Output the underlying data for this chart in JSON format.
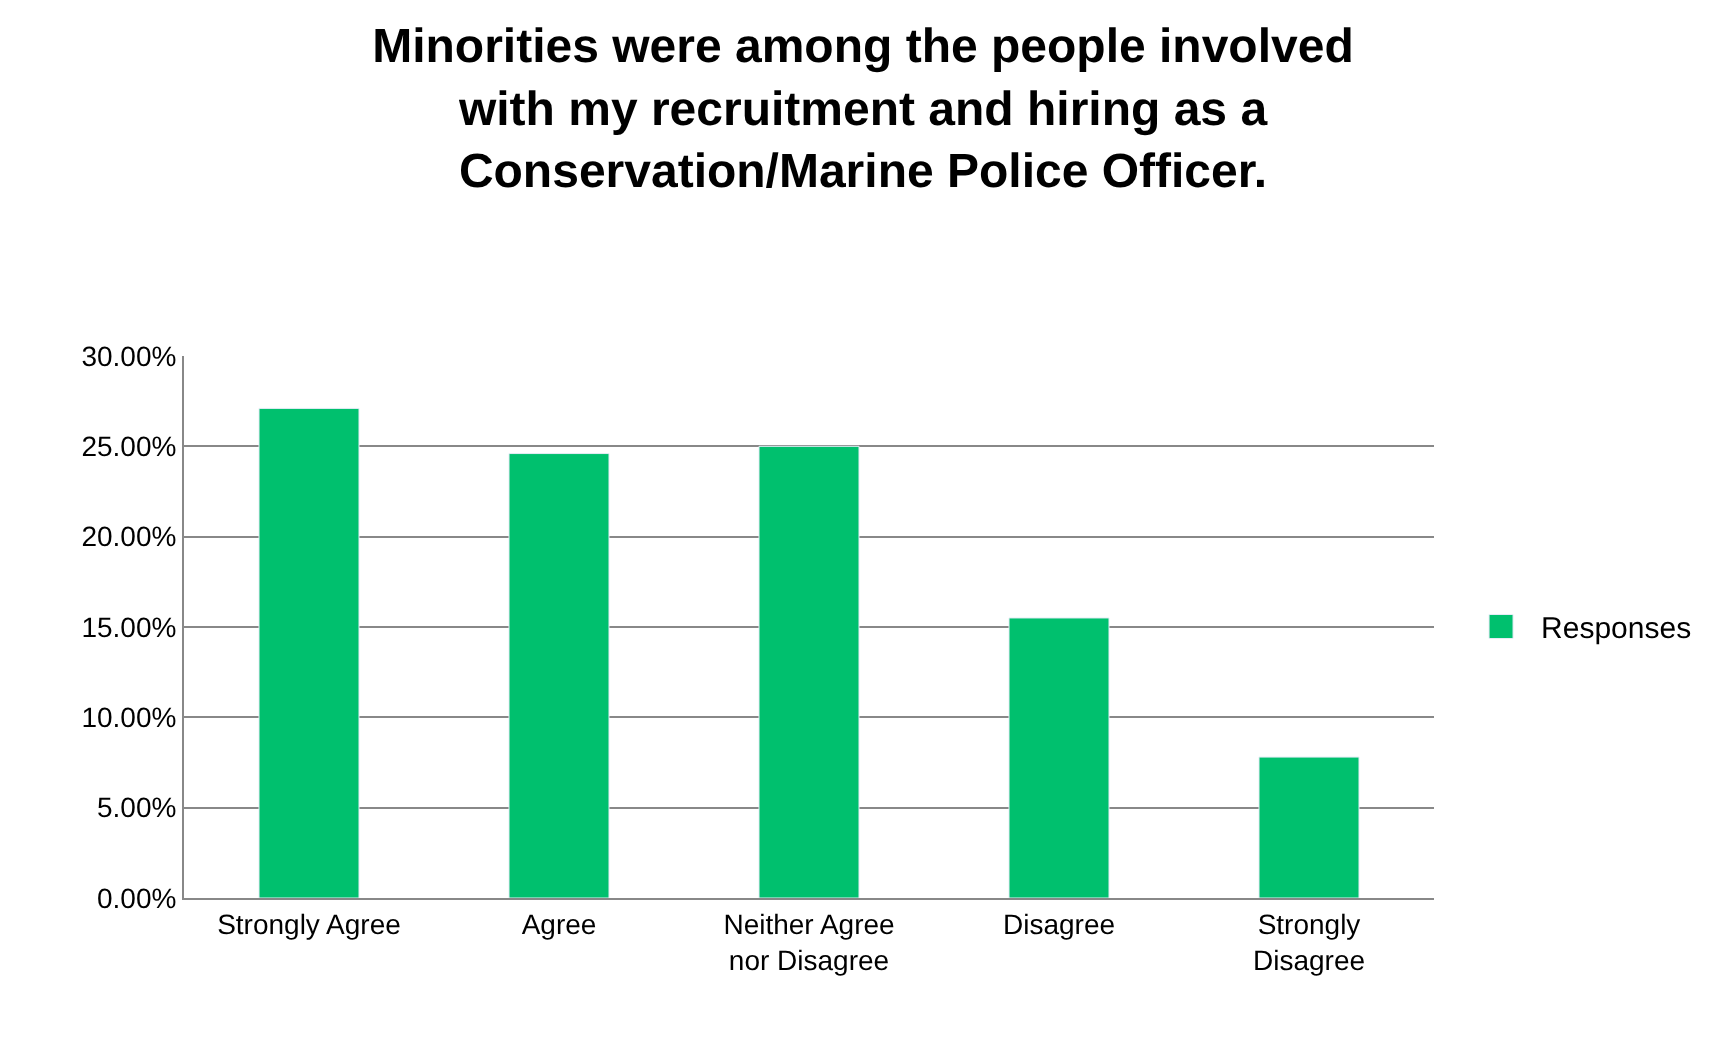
{
  "chart_data": {
    "type": "bar",
    "title": "Minorities were among the people involved with my recruitment and hiring as a Conservation/Marine Police Officer.",
    "categories": [
      "Strongly Agree",
      "Agree",
      "Neither Agree nor Disagree",
      "Disagree",
      "Strongly Disagree"
    ],
    "series": [
      {
        "name": "Responses",
        "color": "#00c06e",
        "values": [
          27.1,
          24.6,
          25.0,
          15.5,
          7.8
        ]
      }
    ],
    "ylim": [
      0,
      30
    ],
    "yticks": [
      {
        "value": 0,
        "label": "0.00%"
      },
      {
        "value": 5,
        "label": "5.00%"
      },
      {
        "value": 10,
        "label": "10.00%"
      },
      {
        "value": 15,
        "label": "15.00%"
      },
      {
        "value": 20,
        "label": "20.00%"
      },
      {
        "value": 25,
        "label": "25.00%"
      },
      {
        "value": 30,
        "label": "30.00%"
      }
    ],
    "grid": "y",
    "legend": "right"
  }
}
